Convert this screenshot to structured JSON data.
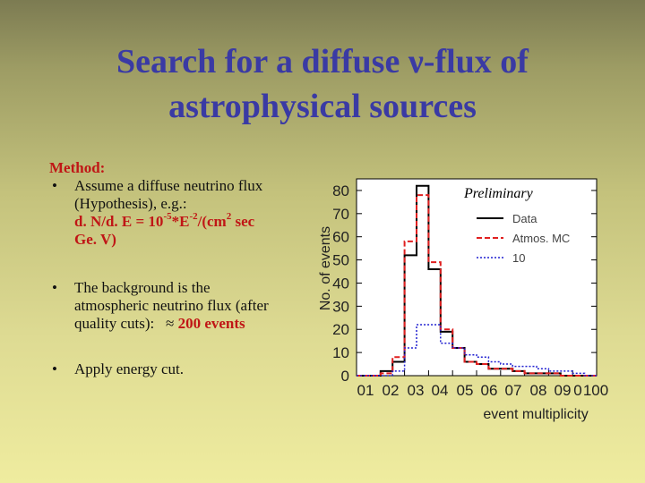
{
  "slide": {
    "title_line1": "Search for a diffuse ν-flux of",
    "title_line2": "astrophysical sources",
    "method_label": "Method:",
    "bullet_symbol": "•",
    "bullet1_line1": "Assume a diffuse neutrino flux",
    "bullet1_line2": "(Hypothesis), e.g.:",
    "formula_a": "d. N/d. E = 10",
    "formula_exp1": "-5",
    "formula_b": "*E",
    "formula_exp2": "-2",
    "formula_c": "/(cm",
    "formula_exp3": "2",
    "formula_d": " sec",
    "formula_line2": "Ge. V)",
    "bullet2_line1": "The background is the",
    "bullet2_line2": "atmospheric neutrino flux (after",
    "bullet2_line3a": "quality cuts):   ≈ ",
    "bullet2_highlight": "200 events",
    "bullet3": "Apply energy cut."
  },
  "chart_data": {
    "type": "histogram",
    "xlabel": "event multiplicity",
    "ylabel": "No. of events",
    "annotation": "Preliminary",
    "x_tick_labels": [
      "01",
      "02",
      "03",
      "04",
      "05",
      "06",
      "07",
      "08",
      "09",
      "0",
      "100"
    ],
    "y_ticks": [
      0,
      10,
      20,
      30,
      40,
      50,
      60,
      70,
      80
    ],
    "ylim": [
      0,
      85
    ],
    "xlim": [
      0,
      100
    ],
    "bin_edges": [
      0,
      10,
      15,
      20,
      25,
      30,
      35,
      40,
      45,
      50,
      55,
      60,
      65,
      70,
      75,
      80,
      85,
      90,
      95,
      100
    ],
    "legend_position": "top-right",
    "series": [
      {
        "name": "Data",
        "color": "#000000",
        "style": "solid",
        "values": [
          0,
          2,
          6,
          52,
          82,
          46,
          19,
          12,
          6,
          5,
          3,
          3,
          2,
          1,
          1,
          1,
          0,
          0,
          0
        ]
      },
      {
        "name": "Atmos. MC",
        "color": "#e02020",
        "style": "dashed",
        "values": [
          0,
          1,
          8,
          58,
          78,
          49,
          20,
          12,
          6,
          5,
          3,
          3,
          2,
          1,
          1,
          1,
          0,
          0,
          0
        ]
      },
      {
        "name": "10",
        "color": "#2020d0",
        "style": "dotted",
        "values": [
          0,
          0,
          2,
          12,
          22,
          22,
          14,
          12,
          9,
          8,
          6,
          5,
          4,
          4,
          3,
          2,
          2,
          1,
          0
        ]
      }
    ]
  }
}
